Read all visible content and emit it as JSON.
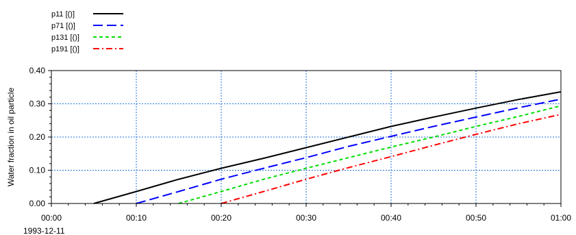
{
  "chart_data": {
    "type": "line",
    "title": "",
    "xlabel": "",
    "ylabel": "Water fraction in oil particle",
    "x_date": "1993-12-11",
    "x_ticks": [
      "00:00",
      "00:10",
      "00:20",
      "00:30",
      "00:40",
      "00:50",
      "01:00"
    ],
    "y_ticks": [
      "0.00",
      "0.10",
      "0.20",
      "0.30",
      "0.40"
    ],
    "xlim": [
      0,
      60
    ],
    "ylim": [
      0,
      0.4
    ],
    "grid": true,
    "legend_position": "top-left",
    "series": [
      {
        "name": "p11  [()]",
        "color": "#000000",
        "dash": "solid",
        "points": [
          [
            5,
            0
          ],
          [
            10,
            0.036
          ],
          [
            15,
            0.073
          ],
          [
            20,
            0.106
          ],
          [
            25,
            0.136
          ],
          [
            30,
            0.168
          ],
          [
            35,
            0.2
          ],
          [
            40,
            0.232
          ],
          [
            45,
            0.26
          ],
          [
            50,
            0.287
          ],
          [
            55,
            0.313
          ],
          [
            60,
            0.336
          ]
        ]
      },
      {
        "name": "p71  [()]",
        "color": "#0000ff",
        "dash": "long-dash",
        "points": [
          [
            10,
            0
          ],
          [
            15,
            0.036
          ],
          [
            20,
            0.073
          ],
          [
            25,
            0.106
          ],
          [
            30,
            0.138
          ],
          [
            35,
            0.172
          ],
          [
            40,
            0.202
          ],
          [
            45,
            0.232
          ],
          [
            50,
            0.26
          ],
          [
            55,
            0.288
          ],
          [
            60,
            0.314
          ]
        ]
      },
      {
        "name": "p131 [()]",
        "color": "#00dd00",
        "dash": "short-dash",
        "points": [
          [
            15,
            0
          ],
          [
            20,
            0.036
          ],
          [
            25,
            0.073
          ],
          [
            30,
            0.106
          ],
          [
            35,
            0.138
          ],
          [
            40,
            0.17
          ],
          [
            45,
            0.2
          ],
          [
            50,
            0.232
          ],
          [
            55,
            0.262
          ],
          [
            60,
            0.294
          ]
        ]
      },
      {
        "name": "p191 [()]",
        "color": "#ff0000",
        "dash": "dash-dot",
        "points": [
          [
            20,
            0
          ],
          [
            25,
            0.036
          ],
          [
            30,
            0.073
          ],
          [
            35,
            0.108
          ],
          [
            40,
            0.141
          ],
          [
            45,
            0.175
          ],
          [
            50,
            0.208
          ],
          [
            55,
            0.24
          ],
          [
            60,
            0.268
          ]
        ]
      }
    ]
  }
}
